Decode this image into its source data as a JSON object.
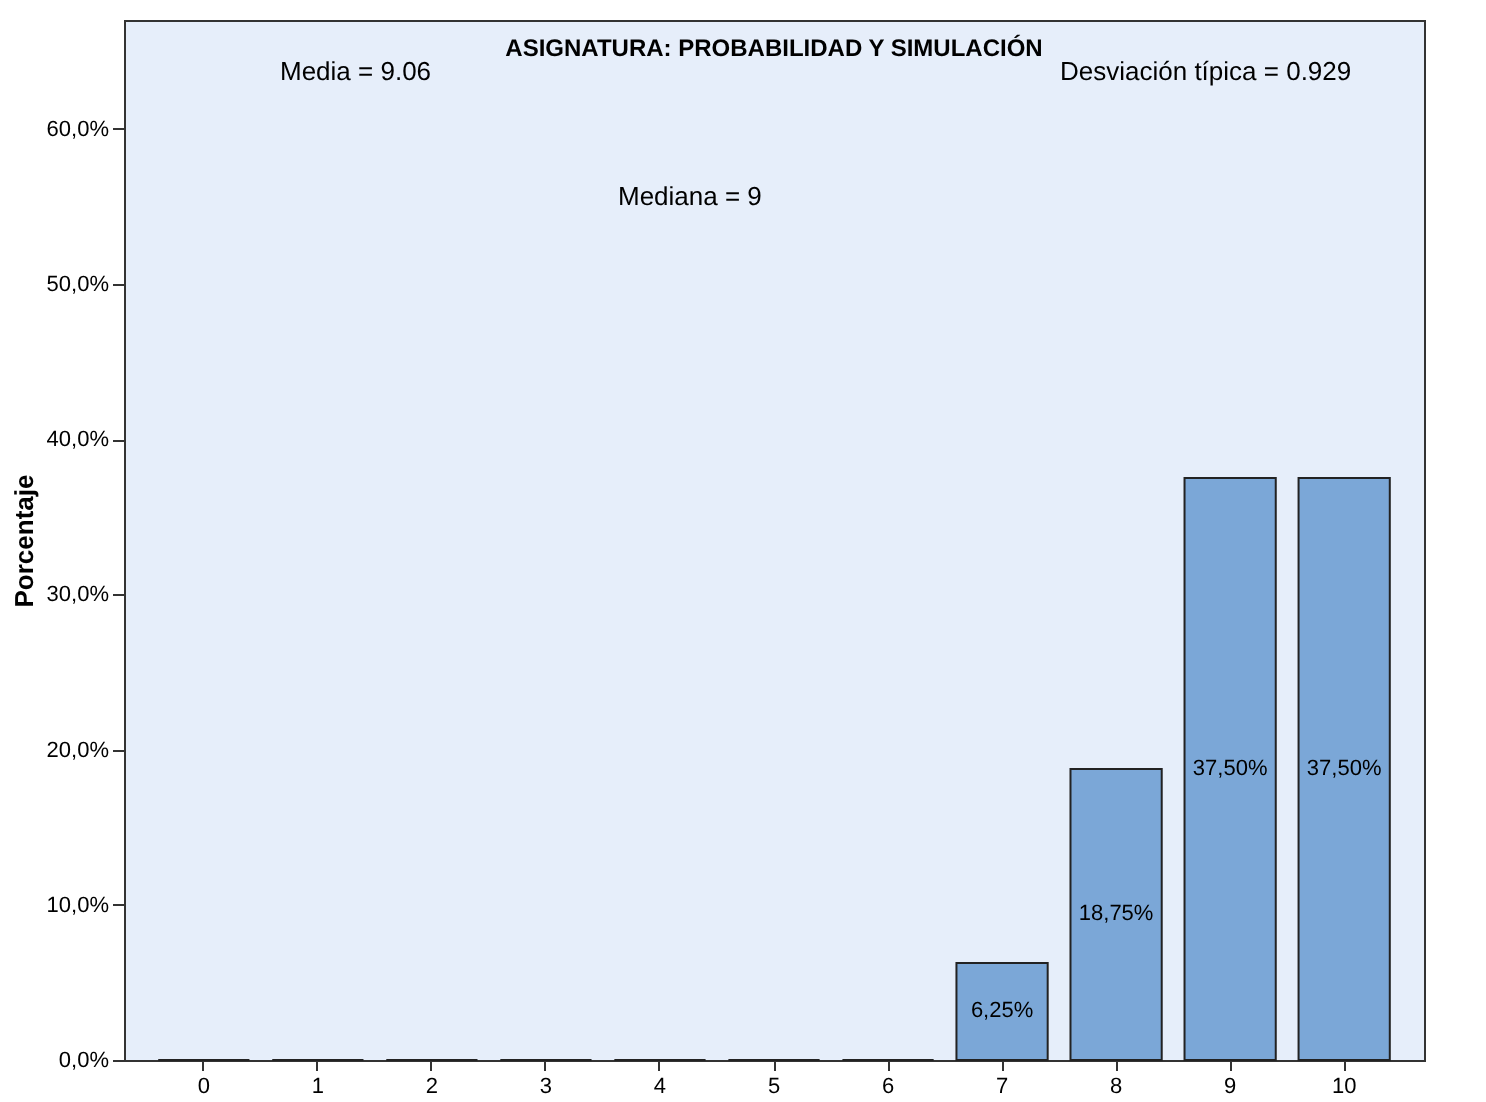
{
  "chart_data": {
    "type": "bar",
    "title": "ASIGNATURA: PROBABILIDAD Y SIMULACIÓN",
    "ylabel": "Porcentaje",
    "annotations": [
      "Media = 9.06",
      "Mediana = 9",
      "Desviación típica = 0.929"
    ],
    "categories": [
      "0",
      "1",
      "2",
      "3",
      "4",
      "5",
      "6",
      "7",
      "8",
      "9",
      "10"
    ],
    "values": [
      0,
      0,
      0,
      0,
      0,
      0,
      0,
      6.25,
      18.75,
      37.5,
      37.5
    ],
    "value_labels": [
      null,
      null,
      null,
      null,
      null,
      null,
      null,
      "6,25%",
      "18,75%",
      "37,50%",
      "37,50%"
    ],
    "color": "#7ba7d7",
    "ylim": [
      0,
      67
    ],
    "yticks": [
      {
        "value": 0,
        "label": "0,0%"
      },
      {
        "value": 10,
        "label": "10,0%"
      },
      {
        "value": 20,
        "label": "20,0%"
      },
      {
        "value": 30,
        "label": "30,0%"
      },
      {
        "value": 40,
        "label": "40,0%"
      },
      {
        "value": 50,
        "label": "50,0%"
      },
      {
        "value": 60,
        "label": "60,0%"
      }
    ],
    "grid": false
  }
}
